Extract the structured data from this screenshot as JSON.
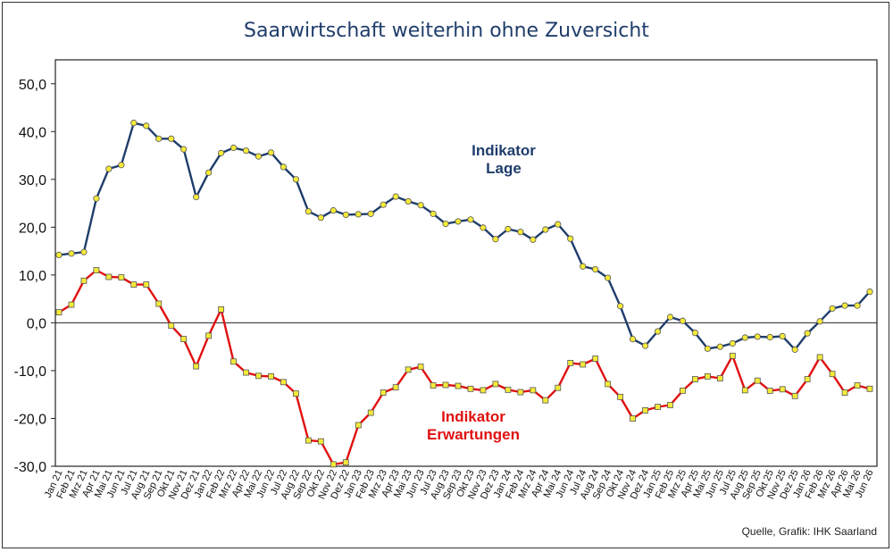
{
  "title": "Saarwirtschaft weiterhin ohne Zuversicht",
  "source": "Quelle, Grafik: IHK Saarland",
  "chart_data": {
    "type": "line",
    "ylim": [
      -30,
      55
    ],
    "yticks": [
      -30,
      -20,
      -10,
      0,
      10,
      20,
      30,
      40,
      50
    ],
    "ytick_labels": [
      "-30,0",
      "-20,0",
      "-10,0",
      "0,0",
      "10,0",
      "20,0",
      "30,0",
      "40,0",
      "50,0"
    ],
    "categories": [
      "Jan 21",
      "Feb 21",
      "Mrz 21",
      "Apr 21",
      "Mai 21",
      "Jun 21",
      "Jul 21",
      "Aug 21",
      "Sep 21",
      "Okt 21",
      "Nov 21",
      "Dez 21",
      "Jan 22",
      "Feb 22",
      "Mrz 22",
      "Apr 22",
      "Mai 22",
      "Jun 22",
      "Jul 22",
      "Aug 22",
      "Sep 22",
      "Okt 22",
      "Nov 22",
      "Dez 22",
      "Jan 23",
      "Feb 23",
      "Mrz 23",
      "Apr 23",
      "Mai 23",
      "Jun 23",
      "Jul 23",
      "Aug 23",
      "Sep 23",
      "Okt 23",
      "Nov 23",
      "Dez 23",
      "Jan 24",
      "Feb 24",
      "Mrz 24",
      "Apr 24",
      "Mai 24",
      "Jun 24",
      "Jul 24",
      "Aug 24",
      "Sep 24",
      "Okt 24",
      "Nov 24",
      "Dez 24",
      "Jan 25",
      "Feb 25",
      "Mrz 25",
      "Apr 25",
      "Mai 25",
      "Jun 25",
      "Jul 25",
      "Aug 25",
      "Sep 25",
      "Okt 25",
      "Nov 25",
      "Dez 25",
      "Jan 26",
      "Feb 26",
      "Mrz 26",
      "Apr 26",
      "Mai 26",
      "Jun 26"
    ],
    "series": [
      {
        "name": "Indikator Lage",
        "label_lines": [
          "Indikator",
          "Lage"
        ],
        "color": "#1f3d6b",
        "marker": "circle",
        "marker_color": "#f5ea3a",
        "values": [
          14.2,
          14.5,
          14.8,
          26.0,
          32.2,
          33.0,
          41.8,
          41.2,
          38.5,
          38.5,
          36.3,
          26.3,
          31.4,
          35.5,
          36.6,
          36.0,
          34.8,
          35.6,
          32.6,
          30.0,
          23.3,
          22.0,
          23.5,
          22.6,
          22.7,
          22.8,
          24.7,
          26.4,
          25.4,
          24.6,
          22.8,
          20.7,
          21.2,
          21.6,
          19.9,
          17.5,
          19.6,
          19.0,
          17.4,
          19.5,
          20.6,
          17.6,
          11.8,
          11.2,
          9.4,
          3.5,
          -3.4,
          -4.8,
          -1.8,
          1.2,
          0.4,
          -2.1,
          -5.4,
          -5.0,
          -4.3,
          -3.1,
          -2.9,
          -3.0,
          -2.8,
          -5.6,
          -2.2,
          0.3,
          3.0,
          3.6,
          3.6,
          6.5
        ]
      },
      {
        "name": "Indikator Erwartungen",
        "label_lines": [
          "Indikator",
          "Erwartungen"
        ],
        "color": "#e01010",
        "marker": "square",
        "marker_color": "#f5ea3a",
        "values": [
          2.2,
          3.8,
          8.8,
          11.0,
          9.6,
          9.5,
          8.0,
          8.0,
          4.0,
          -0.6,
          -3.4,
          -9.1,
          -2.7,
          2.8,
          -8.1,
          -10.4,
          -11.1,
          -11.2,
          -12.4,
          -14.8,
          -24.6,
          -24.8,
          -29.6,
          -29.2,
          -21.4,
          -18.8,
          -14.6,
          -13.5,
          -9.8,
          -9.2,
          -13.1,
          -13.0,
          -13.2,
          -13.8,
          -14.1,
          -12.8,
          -14.0,
          -14.5,
          -14.1,
          -16.2,
          -13.6,
          -8.4,
          -8.7,
          -7.5,
          -12.8,
          -15.5,
          -20.0,
          -18.3,
          -17.6,
          -17.2,
          -14.2,
          -11.8,
          -11.2,
          -11.6,
          -6.9,
          -14.1,
          -12.1,
          -14.2,
          -13.9,
          -15.3,
          -11.8,
          -7.2,
          -10.7,
          -14.6,
          -13.1,
          -13.8
        ]
      }
    ],
    "legend": "inline-labels",
    "grid": false
  }
}
